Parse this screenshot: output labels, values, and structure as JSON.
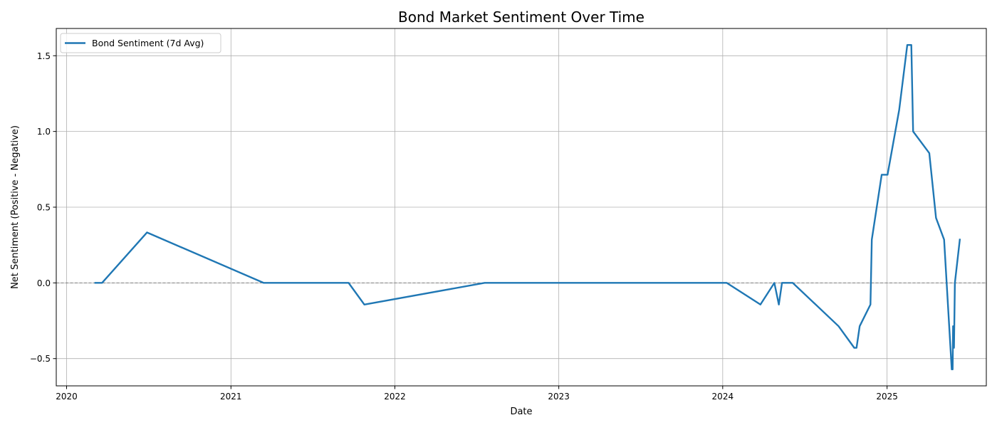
{
  "chart_data": {
    "type": "line",
    "title": "Bond Market Sentiment Over Time",
    "xlabel": "Date",
    "ylabel": "Net Sentiment (Positive - Negative)",
    "x_is_date": true,
    "xlim": [
      "2019-12-09",
      "2025-08-10"
    ],
    "ylim": [
      -0.68,
      1.68
    ],
    "xticks": [
      "2020-01-01",
      "2021-01-01",
      "2022-01-01",
      "2023-01-01",
      "2024-01-01",
      "2025-01-01"
    ],
    "xtick_labels": [
      "2020",
      "2021",
      "2022",
      "2023",
      "2024",
      "2025"
    ],
    "yticks": [
      -0.5,
      0.0,
      0.5,
      1.0,
      1.5
    ],
    "ytick_labels": [
      "−0.5",
      "0.0",
      "0.5",
      "1.0",
      "1.5"
    ],
    "grid": true,
    "reference_line": {
      "y": 0,
      "style": "dashed",
      "color": "#808080"
    },
    "legend": {
      "position": "top-left"
    },
    "series": [
      {
        "name": "Bond Sentiment (7d Avg)",
        "color": "#1f77b4",
        "points": [
          [
            "2020-03-05",
            0.0
          ],
          [
            "2020-03-20",
            0.0
          ],
          [
            "2020-06-28",
            0.333
          ],
          [
            "2021-03-15",
            0.0
          ],
          [
            "2021-09-20",
            0.0
          ],
          [
            "2021-10-25",
            -0.143
          ],
          [
            "2022-07-20",
            0.0
          ],
          [
            "2024-01-10",
            0.0
          ],
          [
            "2024-03-25",
            -0.143
          ],
          [
            "2024-04-25",
            0.0
          ],
          [
            "2024-05-05",
            -0.143
          ],
          [
            "2024-05-12",
            0.0
          ],
          [
            "2024-06-05",
            0.0
          ],
          [
            "2024-09-15",
            -0.286
          ],
          [
            "2024-10-20",
            -0.429
          ],
          [
            "2024-10-25",
            -0.429
          ],
          [
            "2024-11-01",
            -0.286
          ],
          [
            "2024-11-25",
            -0.143
          ],
          [
            "2024-11-28",
            0.286
          ],
          [
            "2024-12-20",
            0.714
          ],
          [
            "2025-01-02",
            0.714
          ],
          [
            "2025-01-28",
            1.143
          ],
          [
            "2025-02-15",
            1.571
          ],
          [
            "2025-02-24",
            1.571
          ],
          [
            "2025-02-28",
            1.0
          ],
          [
            "2025-04-05",
            0.857
          ],
          [
            "2025-04-20",
            0.429
          ],
          [
            "2025-05-08",
            0.286
          ],
          [
            "2025-05-25",
            -0.571
          ],
          [
            "2025-05-27",
            -0.571
          ],
          [
            "2025-05-28",
            -0.286
          ],
          [
            "2025-05-30",
            -0.429
          ],
          [
            "2025-06-01",
            0.0
          ],
          [
            "2025-06-12",
            0.286
          ]
        ]
      }
    ]
  }
}
